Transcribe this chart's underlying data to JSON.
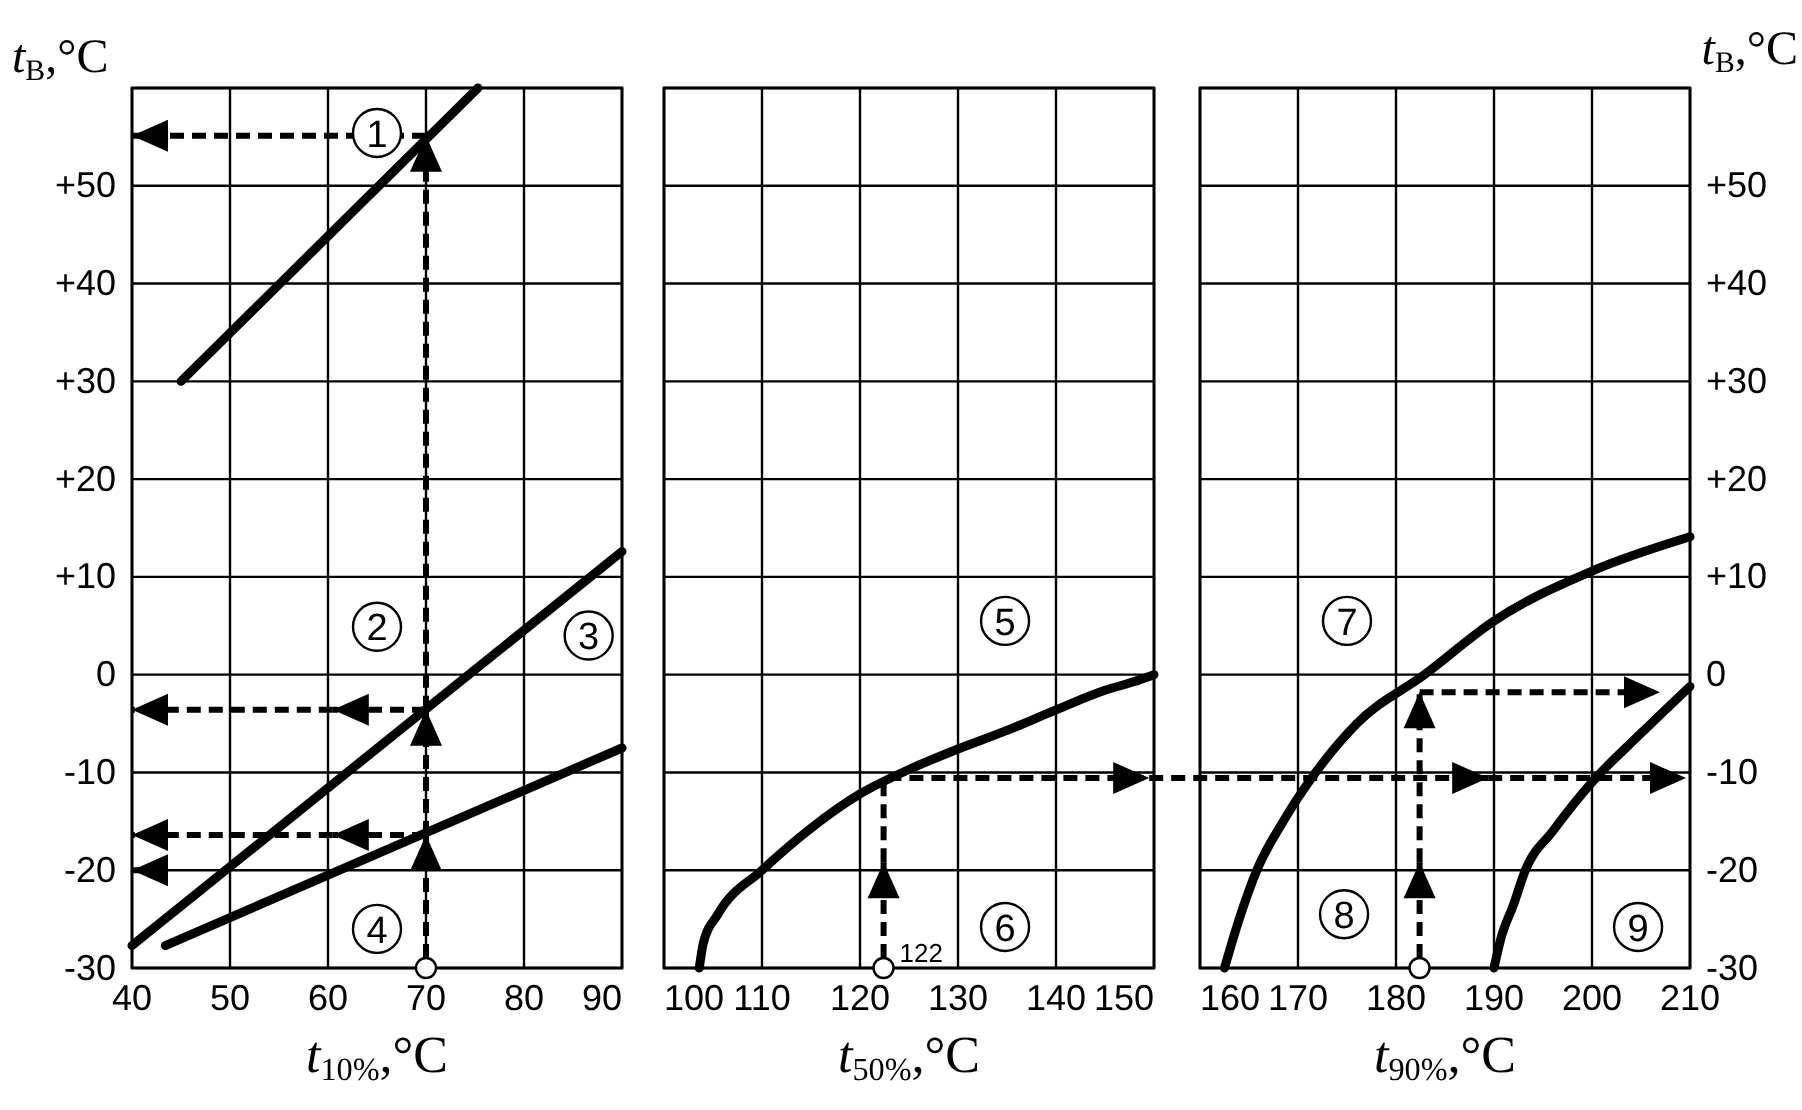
{
  "chart_data": [
    {
      "type": "line",
      "xlabel": "t$_{10%}$,°C",
      "ylabel": "t$_{B}$,°C",
      "xlim": [
        40,
        90
      ],
      "xticks": [
        40,
        50,
        60,
        70,
        80,
        90
      ],
      "ylim": [
        -30,
        60
      ],
      "yticks": [
        -30,
        -20,
        -10,
        0,
        {
          "value": 10,
          "label": "+10"
        },
        {
          "value": 20,
          "label": "+20"
        },
        {
          "value": 30,
          "label": "+30"
        },
        {
          "value": 40,
          "label": "+40"
        },
        {
          "value": 50,
          "label": "+50"
        },
        {
          "value": 60,
          "label": null
        }
      ],
      "grid": true,
      "annotations": [
        {
          "text": "1",
          "x": 65,
          "y": 55.4
        },
        {
          "text": "2",
          "x": 65,
          "y": 4.9
        },
        {
          "text": "3",
          "x": 86.6,
          "y": 4
        },
        {
          "text": "4",
          "x": 65,
          "y": -26
        }
      ],
      "series": [
        {
          "color": "#000000",
          "x": [
            45,
            75.3
          ],
          "values": [
            30,
            60
          ]
        },
        {
          "color": "#000000",
          "x": [
            40,
            90
          ],
          "values": [
            -27.7,
            12.6
          ]
        },
        {
          "color": "#000000",
          "x": [
            43.4,
            90
          ],
          "values": [
            -27.7,
            -7.5
          ]
        },
        {
          "type": "scatter",
          "color": "#ffffff",
          "marker": "circle",
          "x": [
            70
          ],
          "values": [
            -30
          ]
        }
      ]
    },
    {
      "type": "line",
      "xlabel": "t$_{50%}$,°C",
      "xlim": [
        100,
        150
      ],
      "xticks": [
        100,
        110,
        120,
        130,
        140,
        150
      ],
      "ylim": [
        -30,
        60
      ],
      "yticks": [
        -30,
        -20,
        -10,
        0,
        10,
        20,
        30,
        40,
        50,
        60
      ],
      "tick_labels": "x",
      "grid": true,
      "annotations": [
        "122",
        {
          "text": "5",
          "x": 134.8,
          "y": 5.5
        },
        {
          "text": "6",
          "x": 134.8,
          "y": -25.8
        }
      ],
      "series": [
        {
          "color": "#000000",
          "x": [
            103.6,
            104,
            105.5,
            110,
            115,
            120,
            125,
            130,
            135,
            140,
            145,
            148,
            150
          ],
          "values": [
            -30,
            -27.5,
            -24.5,
            -20,
            -15.7,
            -12.2,
            -9.7,
            -7.6,
            -5.7,
            -3.6,
            -1.6,
            -0.7,
            0
          ]
        },
        {
          "type": "scatter",
          "color": "#ffffff",
          "marker": "circle",
          "x": [
            122.4
          ],
          "values": [
            -30
          ]
        }
      ]
    },
    {
      "type": "line",
      "xlabel": "t$_{90%}$,°C",
      "ylabel": "t$_{B}$,°C",
      "xlim": [
        160,
        210
      ],
      "xticks": [
        160,
        170,
        180,
        190,
        200,
        210
      ],
      "ylim": [
        -30,
        60
      ],
      "yticks": [
        -30,
        -20,
        -10,
        0,
        {
          "value": 10,
          "label": "+10"
        },
        {
          "value": 20,
          "label": "+20"
        },
        {
          "value": 30,
          "label": "+30"
        },
        {
          "value": 40,
          "label": "+40"
        },
        {
          "value": 50,
          "label": "+50"
        },
        {
          "value": 60,
          "label": null
        }
      ],
      "grid": true,
      "annotations": [
        {
          "text": "7",
          "x": 175,
          "y": 5.5
        },
        {
          "text": "8",
          "x": 174.7,
          "y": -24.5
        },
        {
          "text": "9",
          "x": 204.7,
          "y": -25.8
        }
      ],
      "series": [
        {
          "color": "#000000",
          "x": [
            162.5,
            164,
            165.8,
            168.5,
            171.8,
            176,
            182.9,
            190,
            200,
            210
          ],
          "values": [
            -30,
            -25,
            -20,
            -15,
            -10,
            -5,
            0,
            5.5,
            10.6,
            14.1
          ]
        },
        {
          "color": "#000000",
          "x": [
            190,
            190.7,
            192,
            193.2,
            196,
            200,
            205,
            210
          ],
          "values": [
            -30,
            -27,
            -23.5,
            -20,
            -16,
            -11,
            -6,
            -1.2
          ]
        },
        {
          "type": "scatter",
          "color": "#ffffff",
          "marker": "circle",
          "x": [
            182.4
          ],
          "values": [
            -30
          ]
        }
      ]
    }
  ]
}
